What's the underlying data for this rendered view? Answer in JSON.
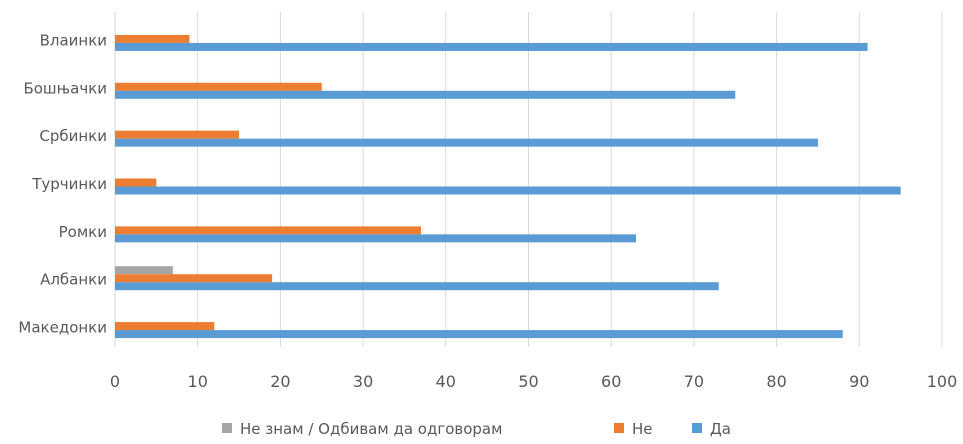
{
  "chart_data": {
    "type": "bar",
    "orientation": "horizontal",
    "categories": [
      "Влаинки",
      "Бошњачки",
      "Србинки",
      "Турчинки",
      "Ромки",
      "Албанки",
      "Македонки"
    ],
    "series": [
      {
        "name": "Не знам / Одбивам да одговорам",
        "color": "#a5a5a5",
        "values": [
          0,
          0,
          0,
          0,
          0,
          7,
          0
        ]
      },
      {
        "name": "Не",
        "color": "#ed7d31",
        "values": [
          9,
          25,
          15,
          5,
          37,
          19,
          12
        ]
      },
      {
        "name": "Да",
        "color": "#5b9bd5",
        "values": [
          91,
          75,
          85,
          95,
          63,
          73,
          88
        ]
      }
    ],
    "xlim": [
      0,
      100
    ],
    "xticks": [
      "0",
      "10",
      "20",
      "30",
      "40",
      "50",
      "60",
      "70",
      "80",
      "90",
      "100"
    ],
    "grid": "vertical",
    "legend": "bottom",
    "title": "",
    "xlabel": "",
    "ylabel": ""
  }
}
